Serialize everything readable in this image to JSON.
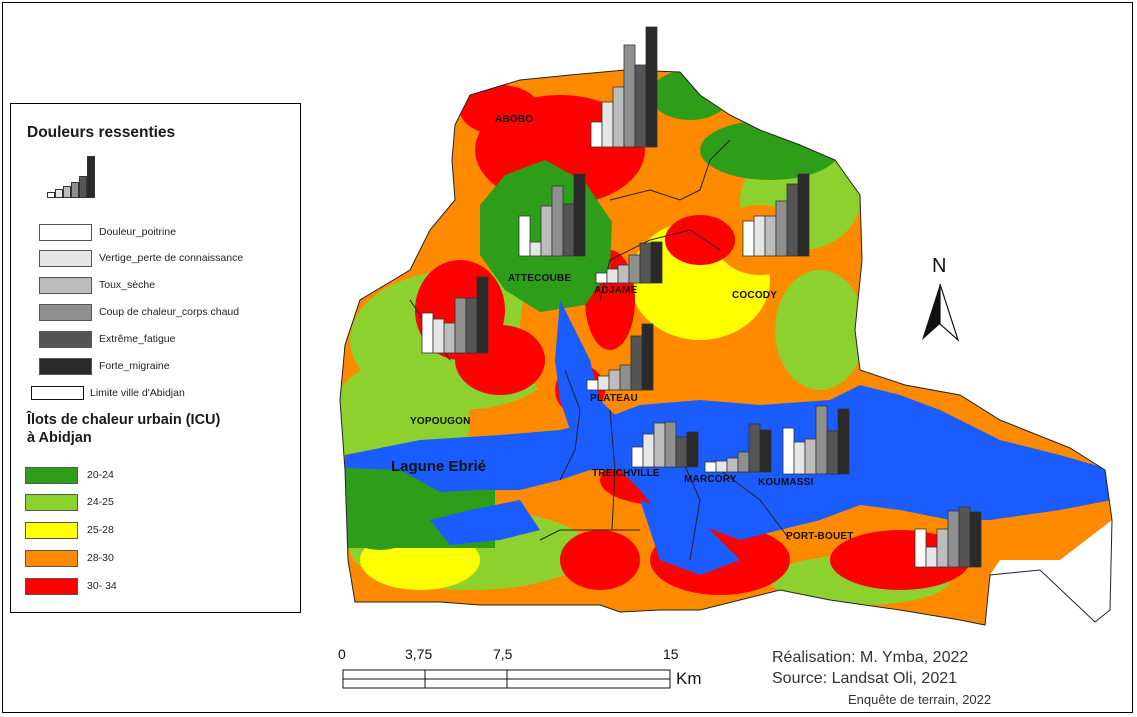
{
  "legend": {
    "title_pain": "Douleurs ressenties",
    "pain_categories": [
      {
        "label": "Douleur_poitrine",
        "color": "#ffffff"
      },
      {
        "label": "Vertige_perte de connaissance",
        "color": "#e6e6e6"
      },
      {
        "label": "Toux_sèche",
        "color": "#bdbdbd"
      },
      {
        "label": "Coup de chaleur_corps chaud",
        "color": "#8f8f8f"
      },
      {
        "label": "Extrême_fatigue",
        "color": "#555555"
      },
      {
        "label": "Forte_migraine",
        "color": "#2a2a2a"
      }
    ],
    "boundary_label": "Limite ville d'Abidjan",
    "title_icu_line1": "Îlots de chaleur urbain (ICU)",
    "title_icu_line2": "à Abidjan",
    "icu_classes": [
      {
        "label": "20-24",
        "color": "#2e9e1a"
      },
      {
        "label": "24-25",
        "color": "#8cd12e"
      },
      {
        "label": "25-28",
        "color": "#ffff00"
      },
      {
        "label": "28-30",
        "color": "#ff8a00"
      },
      {
        "label": "30- 34",
        "color": "#ff0000"
      }
    ]
  },
  "map": {
    "districts": {
      "abobo": "ABOBO",
      "attecoube": "ATTECOUBE",
      "adjame": "ADJAME",
      "cocody": "COCODY",
      "plateau": "PLATEAU",
      "yopougon": "YOPOUGON",
      "treichville": "TREICHVILLE",
      "marcory": "MARCORY",
      "koumassi": "KOUMASSI",
      "port_bouet": "PORT-BOUET"
    },
    "lagoon_label": "Lagune Ebrié",
    "north_label": "N",
    "colors": {
      "water": "#1a5cff",
      "green_dark": "#2e9e1a",
      "green_light": "#8cd12e",
      "yellow": "#ffff00",
      "orange": "#ff8a00",
      "red": "#ff0000"
    }
  },
  "scale": {
    "ticks": [
      "0",
      "3,75",
      "7,5",
      "15"
    ],
    "unit": "Km"
  },
  "credits": {
    "realisation": "Réalisation: M. Ymba, 2022",
    "source": "Source: Landsat Oli, 2021",
    "survey": "Enquête de terrain, 2022"
  }
}
